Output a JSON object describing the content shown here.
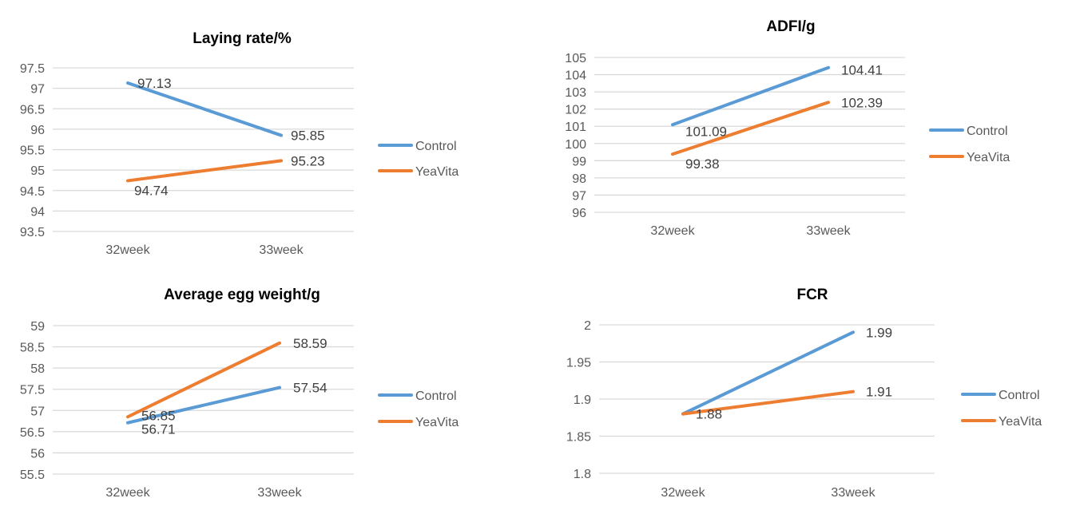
{
  "colors": {
    "Control": "#5B9BD5",
    "YeaVita": "#ED7D31",
    "grid": "#D9D9D9"
  },
  "chart_data": [
    {
      "type": "line",
      "title": "Laying rate/%",
      "categories": [
        "32week",
        "33week"
      ],
      "yticks": [
        "93.5",
        "94",
        "94.5",
        "95",
        "95.5",
        "96",
        "96.5",
        "97",
        "97.5"
      ],
      "ylim": [
        93.5,
        97.5
      ],
      "grid": true,
      "legend": "right",
      "series": [
        {
          "name": "Control",
          "values": [
            97.13,
            95.85
          ],
          "labels": [
            "97.13",
            "95.85"
          ]
        },
        {
          "name": "YeaVita",
          "values": [
            94.74,
            95.23
          ],
          "labels": [
            "94.74",
            "95.23"
          ]
        }
      ]
    },
    {
      "type": "line",
      "title": "ADFI/g",
      "categories": [
        "32week",
        "33week"
      ],
      "yticks": [
        "96",
        "97",
        "98",
        "99",
        "100",
        "101",
        "102",
        "103",
        "104",
        "105"
      ],
      "ylim": [
        96,
        105
      ],
      "grid": true,
      "legend": "right",
      "series": [
        {
          "name": "Control",
          "values": [
            101.09,
            104.41
          ],
          "labels": [
            "101.09",
            "104.41"
          ]
        },
        {
          "name": "YeaVita",
          "values": [
            99.38,
            102.39
          ],
          "labels": [
            "99.38",
            "102.39"
          ]
        }
      ]
    },
    {
      "type": "line",
      "title": "Average egg weight/g",
      "categories": [
        "32week",
        "33week"
      ],
      "yticks": [
        "55.5",
        "56",
        "56.5",
        "57",
        "57.5",
        "58",
        "58.5",
        "59"
      ],
      "ylim": [
        55.5,
        59
      ],
      "grid": true,
      "legend": "right",
      "series": [
        {
          "name": "Control",
          "values": [
            56.71,
            57.54
          ],
          "labels": [
            "56.71",
            "57.54"
          ]
        },
        {
          "name": "YeaVita",
          "values": [
            56.85,
            58.59
          ],
          "labels": [
            "56.85",
            "58.59"
          ]
        }
      ]
    },
    {
      "type": "line",
      "title": "FCR",
      "categories": [
        "32week",
        "33week"
      ],
      "yticks": [
        "1.8",
        "1.85",
        "1.9",
        "1.95",
        "2"
      ],
      "ylim": [
        1.8,
        2
      ],
      "grid": true,
      "legend": "right",
      "series": [
        {
          "name": "Control",
          "values": [
            1.88,
            1.99
          ],
          "labels": [
            "",
            "1.99"
          ]
        },
        {
          "name": "YeaVita",
          "values": [
            1.88,
            1.91
          ],
          "labels": [
            "1.88",
            "1.91"
          ]
        }
      ]
    }
  ]
}
